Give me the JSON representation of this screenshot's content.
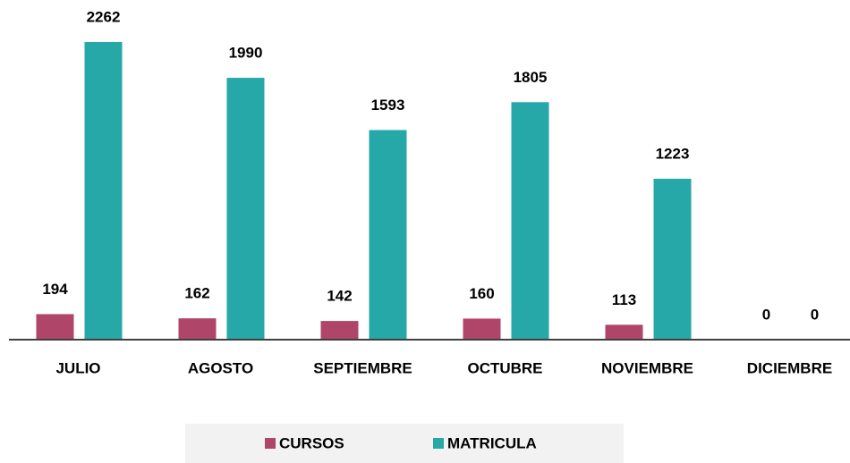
{
  "chart_data": {
    "type": "bar",
    "categories": [
      "JULIO",
      "AGOSTO",
      "SEPTIEMBRE",
      "OCTUBRE",
      "NOVIEMBRE",
      "DICIEMBRE"
    ],
    "series": [
      {
        "name": "CURSOS",
        "color": "#b0456a",
        "values": [
          194,
          162,
          142,
          160,
          113,
          0
        ]
      },
      {
        "name": "MATRICULA",
        "color": "#26a8a8",
        "values": [
          2262,
          1990,
          1593,
          1805,
          1223,
          0
        ]
      }
    ],
    "legend": "bottom"
  }
}
